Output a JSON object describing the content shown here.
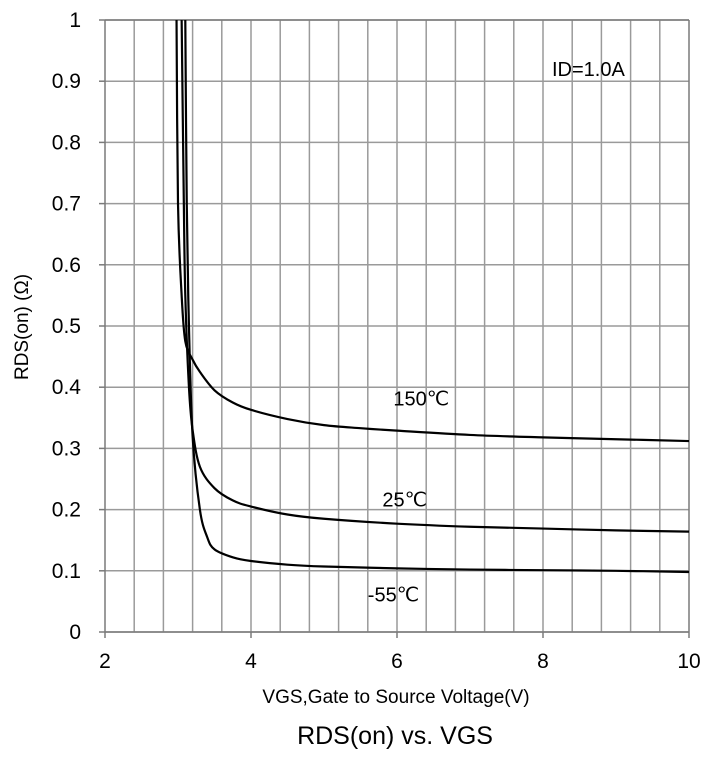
{
  "chart_data": {
    "type": "line",
    "title": "RDS(on) vs. VGS",
    "xlabel": "VGS,Gate to Source Voltage(V)",
    "ylabel": "RDS(on) (Ω)",
    "xlim": [
      2,
      10
    ],
    "ylim": [
      0,
      1
    ],
    "x_ticks": [
      "2",
      "4",
      "6",
      "8",
      "10"
    ],
    "y_ticks": [
      "0",
      "0.1",
      "0.2",
      "0.3",
      "0.4",
      "0.5",
      "0.6",
      "0.7",
      "0.8",
      "0.9",
      "1"
    ],
    "grid": true,
    "minor_x_grid_step": 0.4,
    "annotation": "ID=1.0A",
    "series": [
      {
        "name": "150℃",
        "x": [
          2.98,
          3.0,
          3.05,
          3.1,
          3.2,
          3.3,
          3.5,
          3.75,
          4.0,
          4.5,
          5.0,
          5.5,
          6.0,
          7.0,
          8.0,
          9.0,
          10.0
        ],
        "y": [
          1.0,
          0.7,
          0.55,
          0.475,
          0.445,
          0.425,
          0.395,
          0.375,
          0.363,
          0.348,
          0.338,
          0.333,
          0.329,
          0.322,
          0.318,
          0.315,
          0.312
        ]
      },
      {
        "name": "25℃",
        "x": [
          3.05,
          3.08,
          3.1,
          3.15,
          3.2,
          3.3,
          3.5,
          3.75,
          4.0,
          4.5,
          5.0,
          6.0,
          7.0,
          8.0,
          9.0,
          10.0
        ],
        "y": [
          1.0,
          0.7,
          0.55,
          0.4,
          0.33,
          0.27,
          0.235,
          0.215,
          0.205,
          0.192,
          0.185,
          0.177,
          0.172,
          0.169,
          0.166,
          0.164
        ]
      },
      {
        "name": "-55℃",
        "x": [
          3.1,
          3.12,
          3.15,
          3.2,
          3.3,
          3.4,
          3.5,
          3.75,
          4.0,
          4.5,
          5.0,
          6.0,
          7.0,
          8.0,
          9.0,
          10.0
        ],
        "y": [
          1.0,
          0.7,
          0.5,
          0.32,
          0.2,
          0.155,
          0.135,
          0.122,
          0.116,
          0.11,
          0.107,
          0.104,
          0.102,
          0.101,
          0.1,
          0.098
        ]
      }
    ],
    "labels": [
      {
        "text": "150℃",
        "series": "150℃",
        "x": 5.95,
        "y": 0.37
      },
      {
        "text": "25℃",
        "series": "25℃",
        "x": 5.8,
        "y": 0.205
      },
      {
        "text": "-55℃",
        "series": "-55℃",
        "x": 5.6,
        "y": 0.05
      }
    ]
  }
}
